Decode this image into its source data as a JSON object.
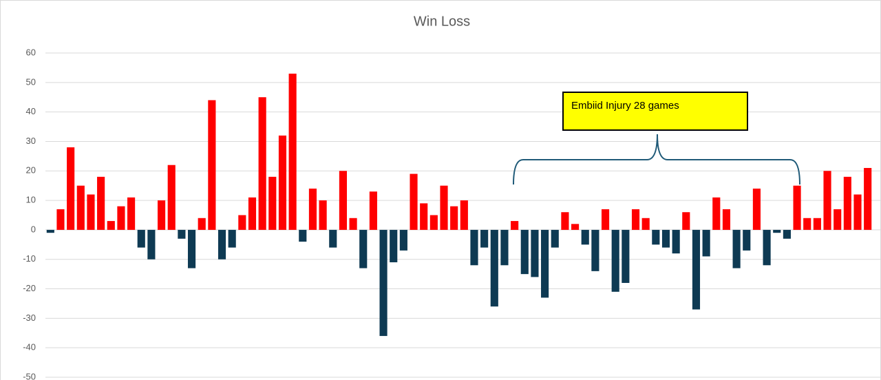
{
  "chart_data": {
    "type": "bar",
    "title": "Win Loss",
    "annotation": "Embiid Injury  28 games",
    "values": [
      -1,
      7,
      28,
      15,
      12,
      18,
      3,
      8,
      11,
      -6,
      -10,
      10,
      22,
      -3,
      -13,
      4,
      44,
      -10,
      -6,
      5,
      11,
      45,
      18,
      32,
      53,
      -4,
      14,
      10,
      -6,
      20,
      4,
      -13,
      13,
      -36,
      -11,
      -7,
      19,
      9,
      5,
      15,
      8,
      10,
      -12,
      -6,
      -26,
      -12,
      3,
      -15,
      -16,
      -23,
      -6,
      6,
      2,
      -5,
      -14,
      7,
      -21,
      -18,
      7,
      4,
      -5,
      -6,
      -8,
      6,
      -27,
      -9,
      11,
      7,
      -13,
      -7,
      14,
      -12,
      -1,
      -3,
      15,
      4,
      4,
      20,
      7,
      18,
      12,
      21
    ],
    "positive_color": "#ff0000",
    "negative_color": "#0e3a53",
    "ylim": [
      -50,
      60
    ],
    "yticks": [
      60,
      50,
      40,
      30,
      20,
      10,
      0,
      -10,
      -20,
      -30,
      -40,
      -50
    ],
    "grid": true
  }
}
